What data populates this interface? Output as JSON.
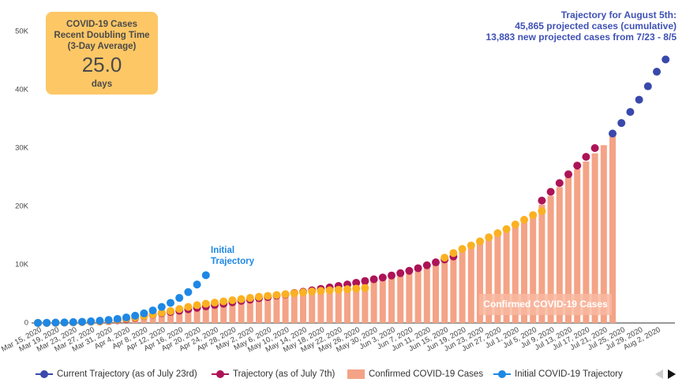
{
  "chart_data": {
    "type": "combo",
    "categories": [
      "Mar 15, 2020",
      null,
      "Mar 19, 2020",
      null,
      "Mar 23, 2020",
      null,
      "Mar 27, 2020",
      null,
      "Mar 31, 2020",
      null,
      "Apr 4, 2020",
      null,
      "Apr 8, 2020",
      null,
      "Apr 12, 2020",
      null,
      "Apr 16, 2020",
      null,
      "Apr 20, 2020",
      null,
      "Apr 24, 2020",
      null,
      "Apr 28, 2020",
      null,
      "May 2, 2020",
      null,
      "May 6, 2020",
      null,
      "May 10, 2020",
      null,
      "May 14, 2020",
      null,
      "May 18, 2020",
      null,
      "May 22, 2020",
      null,
      "May 26, 2020",
      null,
      "May 30, 2020",
      null,
      "Jun 3, 2020",
      null,
      "Jun 7, 2020",
      null,
      "Jun 11, 2020",
      null,
      "Jun 15, 2020",
      null,
      "Jun 19, 2020",
      null,
      "Jun 23, 2020",
      null,
      "Jun 27, 2020",
      null,
      "Jul 1, 2020",
      null,
      "Jul 5, 2020",
      null,
      "Jul 9, 2020",
      null,
      "Jul 13, 2020",
      null,
      "Jul 17, 2020",
      null,
      "Jul 21, 2020",
      null,
      "Jul 25, 2020",
      null,
      "Jul 29, 2020",
      null,
      "Aug 2, 2020",
      null
    ],
    "series": [
      {
        "name": "Confirmed COVID-19 Cases",
        "type": "bar",
        "color": "#f4a386",
        "values": [
          10,
          20,
          40,
          70,
          110,
          160,
          210,
          260,
          320,
          450,
          620,
          850,
          1150,
          1400,
          1650,
          1850,
          2050,
          2300,
          2550,
          2800,
          3050,
          3250,
          3450,
          3700,
          3900,
          4150,
          4350,
          4600,
          4800,
          5000,
          5200,
          5400,
          5650,
          5900,
          6150,
          6400,
          6700,
          7000,
          7300,
          7600,
          7900,
          8300,
          8700,
          9100,
          9600,
          10200,
          10800,
          11500,
          12300,
          13000,
          13700,
          14300,
          15000,
          15900,
          16900,
          17900,
          19000,
          20300,
          21800,
          23300,
          25000,
          26400,
          27700,
          29100,
          30500,
          32500,
          null,
          null,
          null,
          null,
          null,
          null
        ]
      },
      {
        "name": "Trajectory (as of July 7th)",
        "type": "line",
        "color": "#ad1457",
        "values": [
          10,
          20,
          40,
          70,
          110,
          160,
          210,
          260,
          330,
          460,
          640,
          880,
          1180,
          1420,
          1680,
          1900,
          2100,
          2350,
          2600,
          2850,
          3100,
          3300,
          3550,
          3800,
          4000,
          4250,
          4450,
          4700,
          4900,
          5150,
          5350,
          5600,
          5850,
          6100,
          6350,
          6600,
          6900,
          7200,
          7500,
          7800,
          8150,
          8550,
          8950,
          9400,
          9900,
          10400,
          10900,
          11400,
          null,
          null,
          null,
          null,
          null,
          null,
          null,
          null,
          null,
          21000,
          22500,
          24000,
          25500,
          27000,
          28500,
          30000,
          null,
          null,
          null,
          null,
          null,
          null,
          null,
          null
        ]
      },
      {
        "type": "line",
        "color": "#fbb122",
        "values": [
          10,
          20,
          40,
          70,
          110,
          160,
          220,
          300,
          400,
          550,
          750,
          950,
          1200,
          1450,
          1750,
          2050,
          2400,
          2750,
          3050,
          3300,
          3500,
          3700,
          3900,
          4100,
          4300,
          4500,
          4650,
          4800,
          4950,
          5100,
          5250,
          5400,
          5500,
          5600,
          5700,
          5800,
          5900,
          6000,
          null,
          null,
          null,
          null,
          null,
          null,
          null,
          null,
          11200,
          12000,
          12700,
          13300,
          14000,
          14700,
          15400,
          16100,
          16900,
          17700,
          18500,
          19200,
          null,
          null,
          null,
          null,
          null,
          null,
          null,
          null,
          null,
          null,
          null,
          null,
          null,
          null
        ]
      },
      {
        "name": "Current Trajectory (as of July 23rd)",
        "type": "line",
        "color": "#3949ab",
        "values": [
          null,
          null,
          null,
          null,
          null,
          null,
          null,
          null,
          null,
          null,
          null,
          null,
          null,
          null,
          null,
          null,
          null,
          null,
          null,
          null,
          null,
          null,
          null,
          null,
          null,
          null,
          null,
          null,
          null,
          null,
          null,
          null,
          null,
          null,
          null,
          null,
          null,
          null,
          null,
          null,
          null,
          null,
          null,
          null,
          null,
          null,
          null,
          null,
          null,
          null,
          null,
          null,
          null,
          null,
          null,
          null,
          null,
          null,
          null,
          null,
          null,
          null,
          null,
          null,
          null,
          32500,
          34300,
          36200,
          38300,
          40600,
          43100,
          45200
        ]
      },
      {
        "name": "Initial COVID-19 Trajectory",
        "type": "line",
        "color": "#1e88e5",
        "values": [
          10,
          30,
          60,
          100,
          150,
          210,
          290,
          390,
          520,
          700,
          950,
          1250,
          1650,
          2150,
          2750,
          3450,
          4300,
          5300,
          6600,
          8200,
          null,
          null,
          null,
          null,
          null,
          null,
          null,
          null,
          null,
          null,
          null,
          null,
          null,
          null,
          null,
          null,
          null,
          null,
          null,
          null,
          null,
          null,
          null,
          null,
          null,
          null,
          null,
          null,
          null,
          null,
          null,
          null,
          null,
          null,
          null,
          null,
          null,
          null,
          null,
          null,
          null,
          null,
          null,
          null,
          null,
          null,
          null,
          null,
          null,
          null,
          null,
          null
        ]
      }
    ],
    "ylim": [
      0,
      50000
    ],
    "yticks": [
      0,
      {
        "value": 10000,
        "label": "10K"
      },
      {
        "value": 20000,
        "label": "20K"
      },
      {
        "value": 30000,
        "label": "30K"
      },
      {
        "value": 40000,
        "label": "40K"
      },
      {
        "value": 50000,
        "label": "50K"
      }
    ],
    "grid": false,
    "doubling_box": {
      "lines": [
        "COVID-19 Cases",
        "Recent Doubling Time",
        "(3-Day Average)"
      ],
      "value": "25.0",
      "unit": "days"
    },
    "annotations": {
      "trajectory_note": [
        "Trajectory for August 5th:",
        "45,865 projected cases (cumulative)",
        "13,883 new projected cases from 7/23 - 8/5"
      ],
      "initial_label": [
        "Initial",
        "Trajectory"
      ],
      "confirmed_label": "Confirmed COVID-19 Cases"
    }
  }
}
